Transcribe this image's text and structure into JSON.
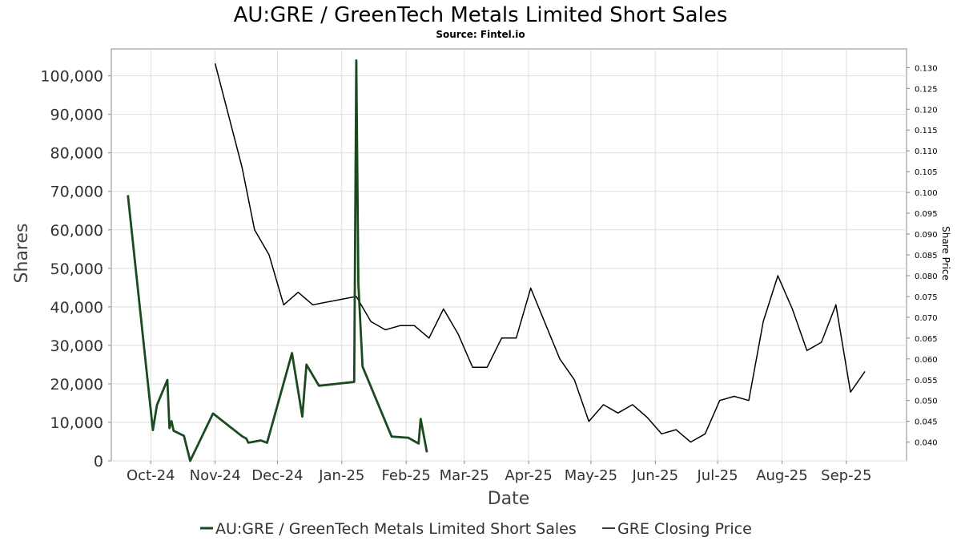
{
  "chart_data": {
    "type": "line",
    "title": "AU:GRE / GreenTech Metals Limited Short Sales",
    "subtitle": "Source: Fintel.io",
    "xlabel": "Date",
    "ylabel": "Shares",
    "y2label": "Share Price",
    "xlim": [
      "2024-09-12",
      "2025-09-30"
    ],
    "ylim": [
      0,
      107000
    ],
    "y2lim": [
      0.0355,
      0.1345
    ],
    "grid": true,
    "legend_position": "bottom",
    "x_ticks": [
      {
        "label": "Oct-24",
        "date": "2024-10-01"
      },
      {
        "label": "Nov-24",
        "date": "2024-11-01"
      },
      {
        "label": "Dec-24",
        "date": "2024-12-01"
      },
      {
        "label": "Jan-25",
        "date": "2025-01-01"
      },
      {
        "label": "Feb-25",
        "date": "2025-02-01"
      },
      {
        "label": "Mar-25",
        "date": "2025-03-01"
      },
      {
        "label": "Apr-25",
        "date": "2025-04-01"
      },
      {
        "label": "May-25",
        "date": "2025-05-01"
      },
      {
        "label": "Jun-25",
        "date": "2025-06-01"
      },
      {
        "label": "Jul-25",
        "date": "2025-07-01"
      },
      {
        "label": "Aug-25",
        "date": "2025-08-01"
      },
      {
        "label": "Sep-25",
        "date": "2025-09-01"
      }
    ],
    "y_ticks": [
      {
        "label": "0",
        "value": 0
      },
      {
        "label": "10,000",
        "value": 10000
      },
      {
        "label": "20,000",
        "value": 20000
      },
      {
        "label": "30,000",
        "value": 30000
      },
      {
        "label": "40,000",
        "value": 40000
      },
      {
        "label": "50,000",
        "value": 50000
      },
      {
        "label": "60,000",
        "value": 60000
      },
      {
        "label": "70,000",
        "value": 70000
      },
      {
        "label": "80,000",
        "value": 80000
      },
      {
        "label": "90,000",
        "value": 90000
      },
      {
        "label": "100,000",
        "value": 100000
      }
    ],
    "y2_ticks": [
      {
        "label": "0.040",
        "value": 0.04
      },
      {
        "label": "0.045",
        "value": 0.045
      },
      {
        "label": "0.050",
        "value": 0.05
      },
      {
        "label": "0.055",
        "value": 0.055
      },
      {
        "label": "0.060",
        "value": 0.06
      },
      {
        "label": "0.065",
        "value": 0.065
      },
      {
        "label": "0.070",
        "value": 0.07
      },
      {
        "label": "0.075",
        "value": 0.075
      },
      {
        "label": "0.080",
        "value": 0.08
      },
      {
        "label": "0.085",
        "value": 0.085
      },
      {
        "label": "0.090",
        "value": 0.09
      },
      {
        "label": "0.095",
        "value": 0.095
      },
      {
        "label": "0.100",
        "value": 0.1
      },
      {
        "label": "0.105",
        "value": 0.105
      },
      {
        "label": "0.110",
        "value": 0.11
      },
      {
        "label": "0.115",
        "value": 0.115
      },
      {
        "label": "0.120",
        "value": 0.12
      },
      {
        "label": "0.125",
        "value": 0.125
      },
      {
        "label": "0.130",
        "value": 0.13
      }
    ],
    "series": [
      {
        "name": "AU:GRE / GreenTech Metals Limited Short Sales",
        "axis": "left",
        "color": "#1b4a20",
        "points": [
          {
            "x": "2024-09-20",
            "y": 69000
          },
          {
            "x": "2024-10-02",
            "y": 8000
          },
          {
            "x": "2024-10-04",
            "y": 14500
          },
          {
            "x": "2024-10-09",
            "y": 21000
          },
          {
            "x": "2024-10-10",
            "y": 8500
          },
          {
            "x": "2024-10-11",
            "y": 10300
          },
          {
            "x": "2024-10-12",
            "y": 7800
          },
          {
            "x": "2024-10-17",
            "y": 6500
          },
          {
            "x": "2024-10-20",
            "y": 0
          },
          {
            "x": "2024-10-31",
            "y": 12300
          },
          {
            "x": "2024-11-14",
            "y": 6400
          },
          {
            "x": "2024-11-16",
            "y": 5800
          },
          {
            "x": "2024-11-17",
            "y": 4700
          },
          {
            "x": "2024-11-23",
            "y": 5300
          },
          {
            "x": "2024-11-26",
            "y": 4700
          },
          {
            "x": "2024-12-08",
            "y": 28000
          },
          {
            "x": "2024-12-13",
            "y": 11500
          },
          {
            "x": "2024-12-15",
            "y": 25000
          },
          {
            "x": "2024-12-21",
            "y": 19500
          },
          {
            "x": "2025-01-07",
            "y": 20500
          },
          {
            "x": "2025-01-08",
            "y": 104000
          },
          {
            "x": "2025-01-09",
            "y": 46000
          },
          {
            "x": "2025-01-11",
            "y": 24500
          },
          {
            "x": "2025-01-25",
            "y": 6300
          },
          {
            "x": "2025-02-02",
            "y": 6000
          },
          {
            "x": "2025-02-07",
            "y": 4500
          },
          {
            "x": "2025-02-08",
            "y": 10900
          },
          {
            "x": "2025-02-11",
            "y": 2200
          }
        ]
      },
      {
        "name": "GRE Closing Price",
        "axis": "right",
        "color": "#000000",
        "points": [
          {
            "x": "2024-11-01",
            "y": 0.131
          },
          {
            "x": "2024-11-14",
            "y": 0.106
          },
          {
            "x": "2024-11-20",
            "y": 0.091
          },
          {
            "x": "2024-11-27",
            "y": 0.085
          },
          {
            "x": "2024-12-04",
            "y": 0.073
          },
          {
            "x": "2024-12-11",
            "y": 0.076
          },
          {
            "x": "2024-12-18",
            "y": 0.073
          },
          {
            "x": "2025-01-08",
            "y": 0.075
          },
          {
            "x": "2025-01-15",
            "y": 0.069
          },
          {
            "x": "2025-01-22",
            "y": 0.067
          },
          {
            "x": "2025-01-29",
            "y": 0.068
          },
          {
            "x": "2025-02-05",
            "y": 0.068
          },
          {
            "x": "2025-02-12",
            "y": 0.065
          },
          {
            "x": "2025-02-19",
            "y": 0.072
          },
          {
            "x": "2025-02-26",
            "y": 0.066
          },
          {
            "x": "2025-03-05",
            "y": 0.058
          },
          {
            "x": "2025-03-12",
            "y": 0.058
          },
          {
            "x": "2025-03-19",
            "y": 0.065
          },
          {
            "x": "2025-03-26",
            "y": 0.065
          },
          {
            "x": "2025-04-02",
            "y": 0.077
          },
          {
            "x": "2025-04-16",
            "y": 0.06
          },
          {
            "x": "2025-04-23",
            "y": 0.055
          },
          {
            "x": "2025-04-30",
            "y": 0.045
          },
          {
            "x": "2025-05-07",
            "y": 0.049
          },
          {
            "x": "2025-05-14",
            "y": 0.047
          },
          {
            "x": "2025-05-21",
            "y": 0.049
          },
          {
            "x": "2025-05-28",
            "y": 0.046
          },
          {
            "x": "2025-06-04",
            "y": 0.042
          },
          {
            "x": "2025-06-11",
            "y": 0.043
          },
          {
            "x": "2025-06-18",
            "y": 0.04
          },
          {
            "x": "2025-06-25",
            "y": 0.042
          },
          {
            "x": "2025-07-02",
            "y": 0.05
          },
          {
            "x": "2025-07-09",
            "y": 0.051
          },
          {
            "x": "2025-07-16",
            "y": 0.05
          },
          {
            "x": "2025-07-23",
            "y": 0.069
          },
          {
            "x": "2025-07-30",
            "y": 0.08
          },
          {
            "x": "2025-08-06",
            "y": 0.072
          },
          {
            "x": "2025-08-13",
            "y": 0.062
          },
          {
            "x": "2025-08-20",
            "y": 0.064
          },
          {
            "x": "2025-08-27",
            "y": 0.073
          },
          {
            "x": "2025-09-03",
            "y": 0.052
          },
          {
            "x": "2025-09-10",
            "y": 0.057
          }
        ]
      }
    ]
  },
  "legend": [
    {
      "label": "AU:GRE / GreenTech Metals Limited Short Sales",
      "color": "#1b4a20"
    },
    {
      "label": "GRE Closing Price",
      "color": "#000000"
    }
  ]
}
